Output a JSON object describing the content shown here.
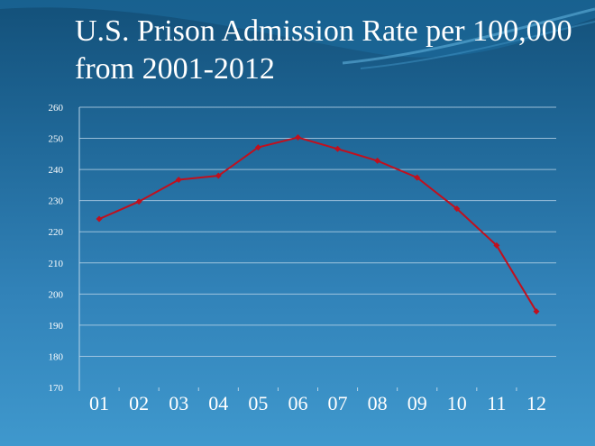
{
  "chart_data": {
    "type": "line",
    "title": "U.S. Prison Admission Rate per 100,000 from 2001-2012",
    "categories": [
      "01",
      "02",
      "03",
      "04",
      "05",
      "06",
      "07",
      "08",
      "09",
      "10",
      "11",
      "12"
    ],
    "series": [
      {
        "values": [
          224.1,
          229.7,
          236.7,
          238.0,
          247.1,
          250.3,
          246.6,
          242.8,
          237.4,
          227.4,
          215.6,
          194.4
        ]
      }
    ],
    "yticks": [
      170,
      180,
      190,
      200,
      210,
      220,
      230,
      240,
      250,
      260
    ],
    "ylim": [
      170,
      260
    ],
    "grid": true,
    "legend": "none",
    "colors": {
      "line": "#c0101e",
      "grid": "#b8d4e8",
      "text": "#ffffff"
    }
  }
}
